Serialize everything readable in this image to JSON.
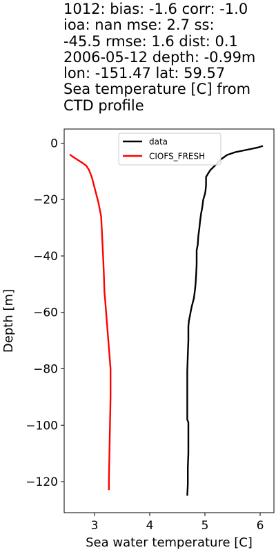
{
  "chart_data": {
    "type": "line",
    "title_lines": [
      "1012: bias: -1.6  corr: -1.0",
      "ioa: nan  mse: 2.7  ss:",
      "-45.5  rmse: 1.6  dist: 0.1",
      "2006-05-12 depth: -0.99m",
      "lon: -151.47 lat: 59.57",
      "Sea temperature [C] from",
      "CTD profile"
    ],
    "xlabel": "Sea water temperature [C]",
    "ylabel": "Depth [m]",
    "xlim": [
      2.45,
      6.25
    ],
    "ylim": [
      -131,
      5
    ],
    "xticks": [
      3,
      4,
      5,
      6
    ],
    "yticks": [
      0,
      -20,
      -40,
      -60,
      -80,
      -100,
      -120
    ],
    "ytick_labels": [
      "0",
      "−20",
      "−40",
      "−60",
      "−80",
      "−100",
      "−120"
    ],
    "grid": false,
    "legend_position": "top-center",
    "series": [
      {
        "name": "data",
        "color": "#000000",
        "points": [
          [
            6.05,
            -1.0
          ],
          [
            5.95,
            -1.6
          ],
          [
            5.75,
            -2.4
          ],
          [
            5.55,
            -3.2
          ],
          [
            5.4,
            -4.2
          ],
          [
            5.3,
            -5.6
          ],
          [
            5.25,
            -6.5
          ],
          [
            5.18,
            -8.0
          ],
          [
            5.1,
            -9.5
          ],
          [
            5.05,
            -11
          ],
          [
            5.02,
            -12
          ],
          [
            5.02,
            -15
          ],
          [
            5.01,
            -17
          ],
          [
            5.0,
            -18
          ],
          [
            4.97,
            -20
          ],
          [
            4.95,
            -23
          ],
          [
            4.93,
            -25
          ],
          [
            4.91,
            -28
          ],
          [
            4.9,
            -30
          ],
          [
            4.88,
            -33
          ],
          [
            4.87,
            -36
          ],
          [
            4.85,
            -38
          ],
          [
            4.85,
            -43
          ],
          [
            4.84,
            -47
          ],
          [
            4.83,
            -50
          ],
          [
            4.82,
            -52
          ],
          [
            4.8,
            -55
          ],
          [
            4.76,
            -58
          ],
          [
            4.73,
            -61
          ],
          [
            4.71,
            -63
          ],
          [
            4.7,
            -65
          ],
          [
            4.7,
            -70
          ],
          [
            4.69,
            -75
          ],
          [
            4.68,
            -81
          ],
          [
            4.68,
            -90
          ],
          [
            4.68,
            -98
          ],
          [
            4.7,
            -99
          ],
          [
            4.7,
            -105
          ],
          [
            4.7,
            -110
          ],
          [
            4.69,
            -115
          ],
          [
            4.69,
            -121
          ],
          [
            4.68,
            -125
          ]
        ]
      },
      {
        "name": "CIOFS_FRESH",
        "color": "#ff0000",
        "points": [
          [
            2.55,
            -4.0
          ],
          [
            2.62,
            -5.0
          ],
          [
            2.7,
            -6.0
          ],
          [
            2.78,
            -7.0
          ],
          [
            2.85,
            -8.0
          ],
          [
            2.9,
            -9.5
          ],
          [
            2.95,
            -12
          ],
          [
            2.99,
            -15
          ],
          [
            3.03,
            -18
          ],
          [
            3.07,
            -21
          ],
          [
            3.1,
            -24
          ],
          [
            3.12,
            -26
          ],
          [
            3.13,
            -30
          ],
          [
            3.14,
            -34
          ],
          [
            3.15,
            -38
          ],
          [
            3.16,
            -42
          ],
          [
            3.17,
            -47
          ],
          [
            3.18,
            -53
          ],
          [
            3.19,
            -55
          ],
          [
            3.21,
            -60
          ],
          [
            3.23,
            -65
          ],
          [
            3.25,
            -70
          ],
          [
            3.27,
            -75
          ],
          [
            3.29,
            -80
          ],
          [
            3.29,
            -90
          ],
          [
            3.28,
            -100
          ],
          [
            3.27,
            -110
          ],
          [
            3.26,
            -120
          ],
          [
            3.26,
            -123
          ]
        ]
      }
    ]
  }
}
